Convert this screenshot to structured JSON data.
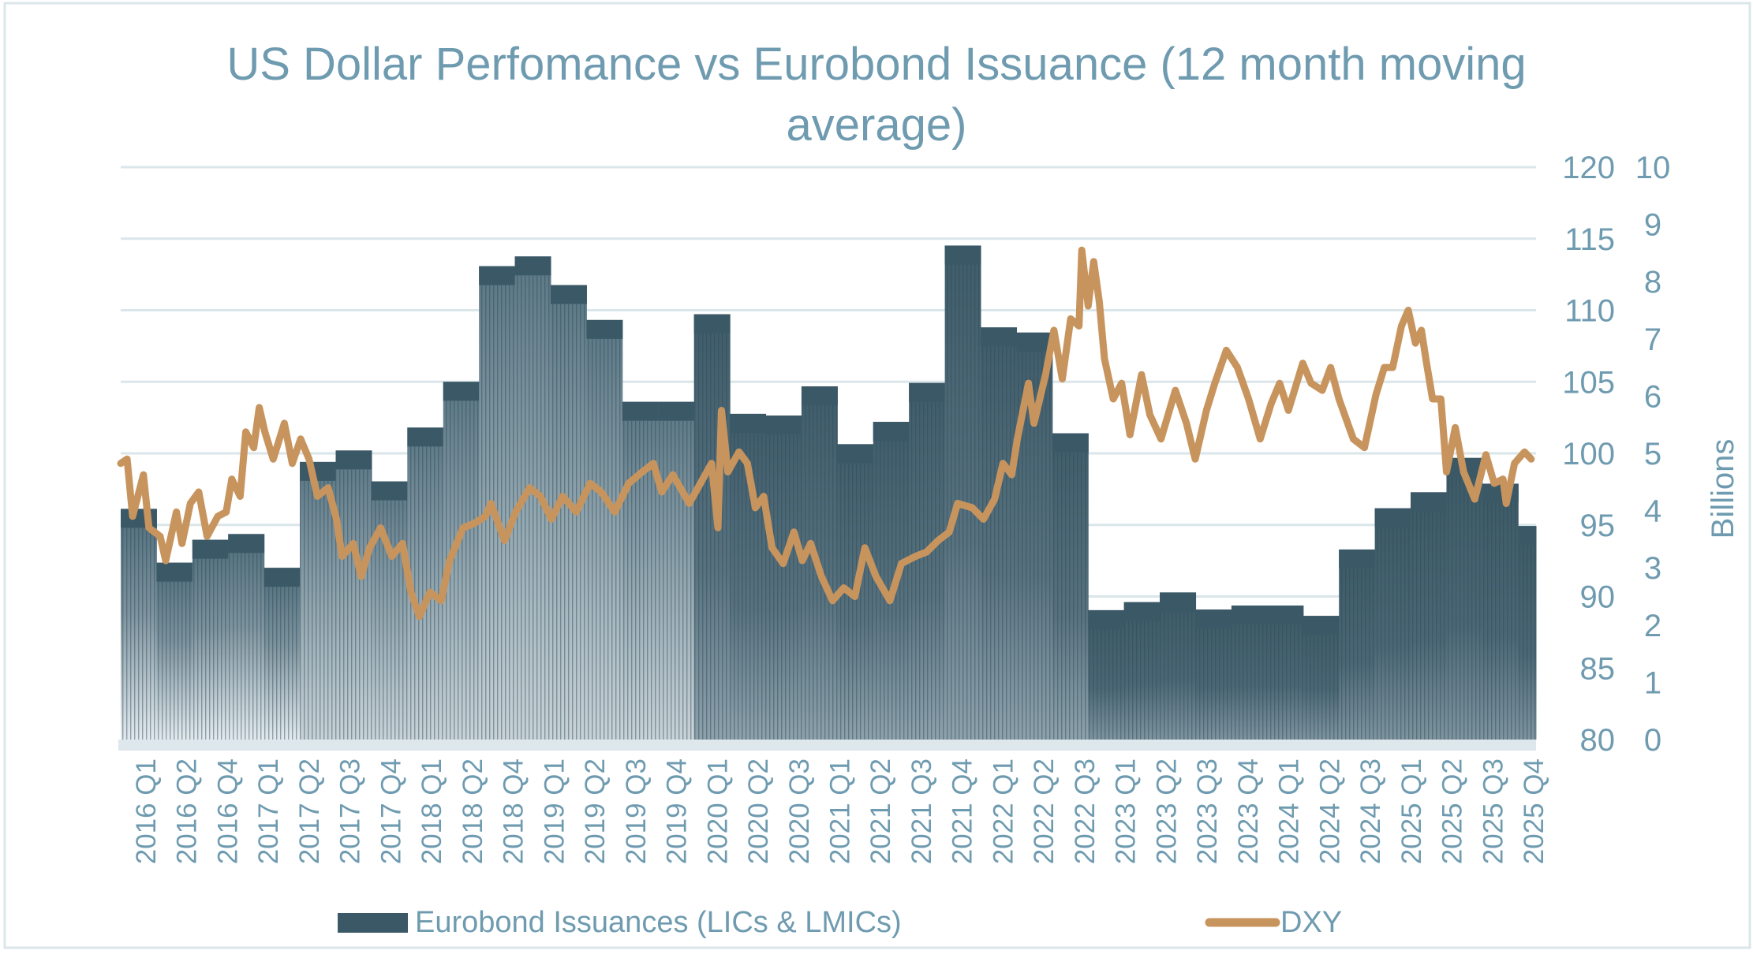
{
  "chart_data": {
    "type": "bar+line",
    "title_lines": [
      "US Dollar Perfomance vs Eurobond Issuance (12 month moving",
      "average)"
    ],
    "x_tick_labels": [
      "2016 Q1",
      "2016 Q2",
      "2016 Q4",
      "2017 Q1",
      "2017 Q2",
      "2017 Q3",
      "2017 Q4",
      "2018 Q1",
      "2018 Q2",
      "2018 Q4",
      "2019 Q1",
      "2019 Q2",
      "2019 Q3",
      "2019 Q4",
      "2020 Q1",
      "2020 Q2",
      "2020 Q3",
      "2021 Q1",
      "2021 Q2",
      "2021 Q3",
      "2021 Q4",
      "2022 Q1",
      "2022 Q2",
      "2022 Q3",
      "2023 Q1",
      "2023 Q2",
      "2023 Q3",
      "2023 Q4",
      "2024 Q1",
      "2024 Q2",
      "2024 Q3",
      "2025 Q1",
      "2025 Q2",
      "2025 Q3",
      "2025 Q4"
    ],
    "y_dxy": {
      "ylim": [
        80,
        120
      ],
      "ticks": [
        "80",
        "85",
        "90",
        "95",
        "100",
        "105",
        "110",
        "115",
        "120"
      ]
    },
    "y_billions": {
      "label": "Billions",
      "ylim": [
        0,
        10
      ],
      "ticks": [
        "0",
        "1",
        "2",
        "3",
        "4",
        "5",
        "6",
        "7",
        "8",
        "9",
        "10"
      ]
    },
    "grid": true,
    "legend_position": "bottom",
    "colors": {
      "bars": "#3a5866",
      "dxy": "#c8945e",
      "text": "#6f9bb0",
      "grid": "#dbe6ea"
    },
    "series": [
      {
        "name": "Eurobond Issuances (LICs & LMICs)",
        "type": "bar",
        "axis": "billions",
        "frequency": "quarterly from 2016 Q1",
        "values": [
          4.03,
          3.09,
          3.49,
          3.59,
          3.0,
          4.85,
          5.05,
          4.51,
          5.45,
          6.25,
          8.27,
          8.44,
          7.94,
          7.33,
          5.9,
          5.9,
          7.43,
          5.69,
          5.66,
          6.17,
          5.16,
          5.55,
          6.23,
          8.63,
          7.2,
          7.11,
          5.35,
          2.26,
          2.4,
          2.57,
          2.27,
          2.34,
          2.34,
          2.16,
          3.32,
          4.04,
          4.32,
          4.92,
          4.47,
          3.73
        ]
      },
      {
        "name": "DXY",
        "type": "line",
        "axis": "dxy",
        "points": [
          [
            "2016-01-01",
            99.3
          ],
          [
            "2016-01-17",
            99.6
          ],
          [
            "2016-02-01",
            95.6
          ],
          [
            "2016-02-28",
            98.5
          ],
          [
            "2016-03-12",
            94.8
          ],
          [
            "2016-04-10",
            94.2
          ],
          [
            "2016-04-24",
            92.5
          ],
          [
            "2016-05-21",
            95.9
          ],
          [
            "2016-06-05",
            93.7
          ],
          [
            "2016-06-26",
            96.5
          ],
          [
            "2016-07-17",
            97.3
          ],
          [
            "2016-08-08",
            94.2
          ],
          [
            "2016-09-05",
            95.6
          ],
          [
            "2016-09-26",
            95.9
          ],
          [
            "2016-10-10",
            98.2
          ],
          [
            "2016-11-01",
            97.0
          ],
          [
            "2016-11-15",
            101.5
          ],
          [
            "2016-12-05",
            100.4
          ],
          [
            "2016-12-19",
            103.2
          ],
          [
            "2017-01-03",
            101.5
          ],
          [
            "2017-01-24",
            99.6
          ],
          [
            "2017-02-22",
            102.1
          ],
          [
            "2017-03-12",
            99.3
          ],
          [
            "2017-04-03",
            101.0
          ],
          [
            "2017-04-24",
            99.6
          ],
          [
            "2017-05-15",
            97.0
          ],
          [
            "2017-06-12",
            97.6
          ],
          [
            "2017-07-03",
            95.4
          ],
          [
            "2017-07-17",
            92.8
          ],
          [
            "2017-08-15",
            93.7
          ],
          [
            "2017-09-05",
            91.4
          ],
          [
            "2017-09-26",
            93.4
          ],
          [
            "2017-10-24",
            94.8
          ],
          [
            "2017-11-22",
            92.8
          ],
          [
            "2017-12-19",
            93.7
          ],
          [
            "2018-01-10",
            90.3
          ],
          [
            "2018-02-01",
            88.6
          ],
          [
            "2018-02-28",
            90.3
          ],
          [
            "2018-03-26",
            89.7
          ],
          [
            "2018-04-17",
            92.5
          ],
          [
            "2018-05-21",
            94.8
          ],
          [
            "2018-06-19",
            95.1
          ],
          [
            "2018-07-17",
            95.6
          ],
          [
            "2018-08-01",
            96.5
          ],
          [
            "2018-09-05",
            93.9
          ],
          [
            "2018-10-03",
            95.9
          ],
          [
            "2018-11-08",
            97.6
          ],
          [
            "2018-12-05",
            97.0
          ],
          [
            "2019-01-03",
            95.4
          ],
          [
            "2019-02-01",
            97.0
          ],
          [
            "2019-03-05",
            95.9
          ],
          [
            "2019-04-10",
            97.9
          ],
          [
            "2019-05-08",
            97.3
          ],
          [
            "2019-06-12",
            95.9
          ],
          [
            "2019-07-17",
            97.9
          ],
          [
            "2019-08-21",
            98.7
          ],
          [
            "2019-09-19",
            99.3
          ],
          [
            "2019-10-10",
            97.3
          ],
          [
            "2019-11-08",
            98.5
          ],
          [
            "2019-12-19",
            96.5
          ],
          [
            "2020-01-17",
            97.9
          ],
          [
            "2020-02-15",
            99.3
          ],
          [
            "2020-03-01",
            94.8
          ],
          [
            "2020-03-10",
            103.0
          ],
          [
            "2020-03-26",
            98.7
          ],
          [
            "2020-04-24",
            100.1
          ],
          [
            "2020-05-15",
            99.3
          ],
          [
            "2020-06-05",
            96.2
          ],
          [
            "2020-06-26",
            97.0
          ],
          [
            "2020-07-17",
            93.4
          ],
          [
            "2020-08-15",
            92.3
          ],
          [
            "2020-09-12",
            94.5
          ],
          [
            "2020-10-03",
            92.5
          ],
          [
            "2020-10-24",
            93.7
          ],
          [
            "2020-11-21",
            91.4
          ],
          [
            "2020-12-19",
            89.7
          ],
          [
            "2021-01-17",
            90.6
          ],
          [
            "2021-02-15",
            90.0
          ],
          [
            "2021-03-10",
            93.4
          ],
          [
            "2021-04-08",
            91.4
          ],
          [
            "2021-05-13",
            89.7
          ],
          [
            "2021-06-12",
            92.3
          ],
          [
            "2021-07-17",
            92.8
          ],
          [
            "2021-08-15",
            93.1
          ],
          [
            "2021-09-14",
            93.9
          ],
          [
            "2021-10-12",
            94.5
          ],
          [
            "2021-11-03",
            96.5
          ],
          [
            "2021-12-10",
            96.2
          ],
          [
            "2022-01-08",
            95.4
          ],
          [
            "2022-02-06",
            96.8
          ],
          [
            "2022-02-27",
            99.3
          ],
          [
            "2022-03-19",
            98.5
          ],
          [
            "2022-04-03",
            101.0
          ],
          [
            "2022-05-01",
            104.9
          ],
          [
            "2022-05-15",
            102.1
          ],
          [
            "2022-06-14",
            105.5
          ],
          [
            "2022-07-05",
            108.6
          ],
          [
            "2022-07-26",
            105.2
          ],
          [
            "2022-08-17",
            109.4
          ],
          [
            "2022-09-08",
            108.9
          ],
          [
            "2022-09-15",
            114.2
          ],
          [
            "2022-10-01",
            110.3
          ],
          [
            "2022-10-15",
            113.4
          ],
          [
            "2022-10-29",
            110.6
          ],
          [
            "2022-11-12",
            106.6
          ],
          [
            "2022-12-04",
            103.8
          ],
          [
            "2022-12-25",
            104.9
          ],
          [
            "2023-01-16",
            101.3
          ],
          [
            "2023-02-15",
            105.5
          ],
          [
            "2023-03-06",
            102.7
          ],
          [
            "2023-04-04",
            101.0
          ],
          [
            "2023-05-10",
            104.4
          ],
          [
            "2023-06-08",
            102.1
          ],
          [
            "2023-06-30",
            99.6
          ],
          [
            "2023-07-28",
            103.0
          ],
          [
            "2023-08-19",
            104.9
          ],
          [
            "2023-09-18",
            107.2
          ],
          [
            "2023-10-16",
            106.0
          ],
          [
            "2023-11-14",
            103.8
          ],
          [
            "2023-12-13",
            101.0
          ],
          [
            "2024-01-11",
            103.5
          ],
          [
            "2024-02-02",
            104.9
          ],
          [
            "2024-02-24",
            103.0
          ],
          [
            "2024-03-30",
            106.3
          ],
          [
            "2024-04-21",
            104.9
          ],
          [
            "2024-05-19",
            104.4
          ],
          [
            "2024-06-10",
            106.0
          ],
          [
            "2024-07-01",
            103.8
          ],
          [
            "2024-08-07",
            101.0
          ],
          [
            "2024-09-05",
            100.4
          ],
          [
            "2024-10-04",
            104.1
          ],
          [
            "2024-10-25",
            106.0
          ],
          [
            "2024-11-16",
            106.0
          ],
          [
            "2024-12-08",
            108.9
          ],
          [
            "2024-12-25",
            110.0
          ],
          [
            "2025-01-13",
            107.7
          ],
          [
            "2025-01-28",
            108.6
          ],
          [
            "2025-02-11",
            106.3
          ],
          [
            "2025-02-26",
            103.8
          ],
          [
            "2025-03-17",
            103.8
          ],
          [
            "2025-04-01",
            98.7
          ],
          [
            "2025-04-23",
            101.8
          ],
          [
            "2025-05-14",
            98.7
          ],
          [
            "2025-06-12",
            96.8
          ],
          [
            "2025-07-10",
            99.9
          ],
          [
            "2025-08-01",
            97.9
          ],
          [
            "2025-08-23",
            98.2
          ],
          [
            "2025-09-01",
            96.5
          ],
          [
            "2025-09-22",
            99.3
          ],
          [
            "2025-10-17",
            100.1
          ],
          [
            "2025-11-04",
            99.6
          ]
        ]
      }
    ]
  },
  "legend": {
    "bars_label": "Eurobond Issuances (LICs & LMICs)",
    "line_label": "DXY"
  }
}
